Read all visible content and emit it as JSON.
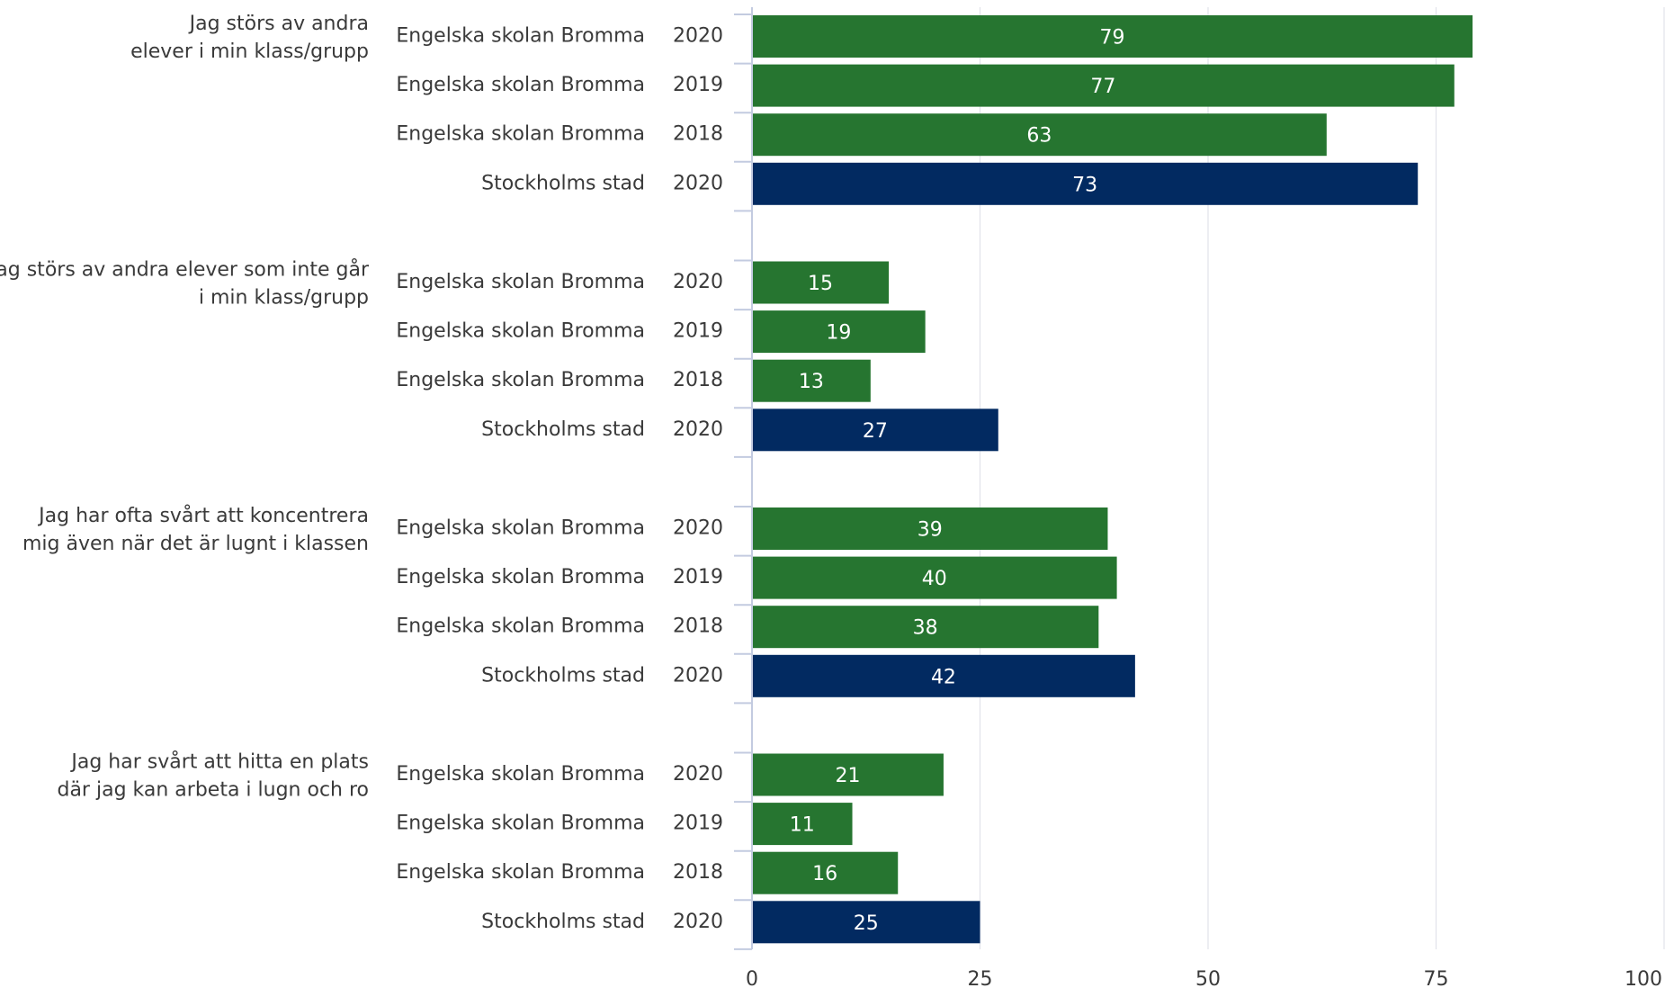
{
  "chart_data": {
    "type": "bar",
    "orientation": "horizontal",
    "xlim": [
      0,
      100
    ],
    "x_ticks": [
      0,
      25,
      50,
      75,
      100
    ],
    "grid": true,
    "colors": {
      "Engelska skolan Bromma": "#267530",
      "Stockholms stad": "#022a61"
    },
    "groups": [
      {
        "question": [
          "Jag störs av andra",
          "elever i min klass/grupp"
        ],
        "rows": [
          {
            "label": "Engelska skolan Bromma",
            "year": "2020",
            "value": 79
          },
          {
            "label": "Engelska skolan Bromma",
            "year": "2019",
            "value": 77
          },
          {
            "label": "Engelska skolan Bromma",
            "year": "2018",
            "value": 63
          },
          {
            "label": "Stockholms stad",
            "year": "2020",
            "value": 73
          }
        ]
      },
      {
        "question": [
          "Jag störs av andra elever som inte går",
          "i min klass/grupp"
        ],
        "rows": [
          {
            "label": "Engelska skolan Bromma",
            "year": "2020",
            "value": 15
          },
          {
            "label": "Engelska skolan Bromma",
            "year": "2019",
            "value": 19
          },
          {
            "label": "Engelska skolan Bromma",
            "year": "2018",
            "value": 13
          },
          {
            "label": "Stockholms stad",
            "year": "2020",
            "value": 27
          }
        ]
      },
      {
        "question": [
          "Jag har ofta svårt att koncentrera",
          "mig även när det är lugnt i klassen"
        ],
        "rows": [
          {
            "label": "Engelska skolan Bromma",
            "year": "2020",
            "value": 39
          },
          {
            "label": "Engelska skolan Bromma",
            "year": "2019",
            "value": 40
          },
          {
            "label": "Engelska skolan Bromma",
            "year": "2018",
            "value": 38
          },
          {
            "label": "Stockholms stad",
            "year": "2020",
            "value": 42
          }
        ]
      },
      {
        "question": [
          "Jag har svårt att hitta en plats",
          "där jag kan arbeta i lugn och ro"
        ],
        "rows": [
          {
            "label": "Engelska skolan Bromma",
            "year": "2020",
            "value": 21
          },
          {
            "label": "Engelska skolan Bromma",
            "year": "2019",
            "value": 11
          },
          {
            "label": "Engelska skolan Bromma",
            "year": "2018",
            "value": 16
          },
          {
            "label": "Stockholms stad",
            "year": "2020",
            "value": 25
          }
        ]
      }
    ]
  }
}
